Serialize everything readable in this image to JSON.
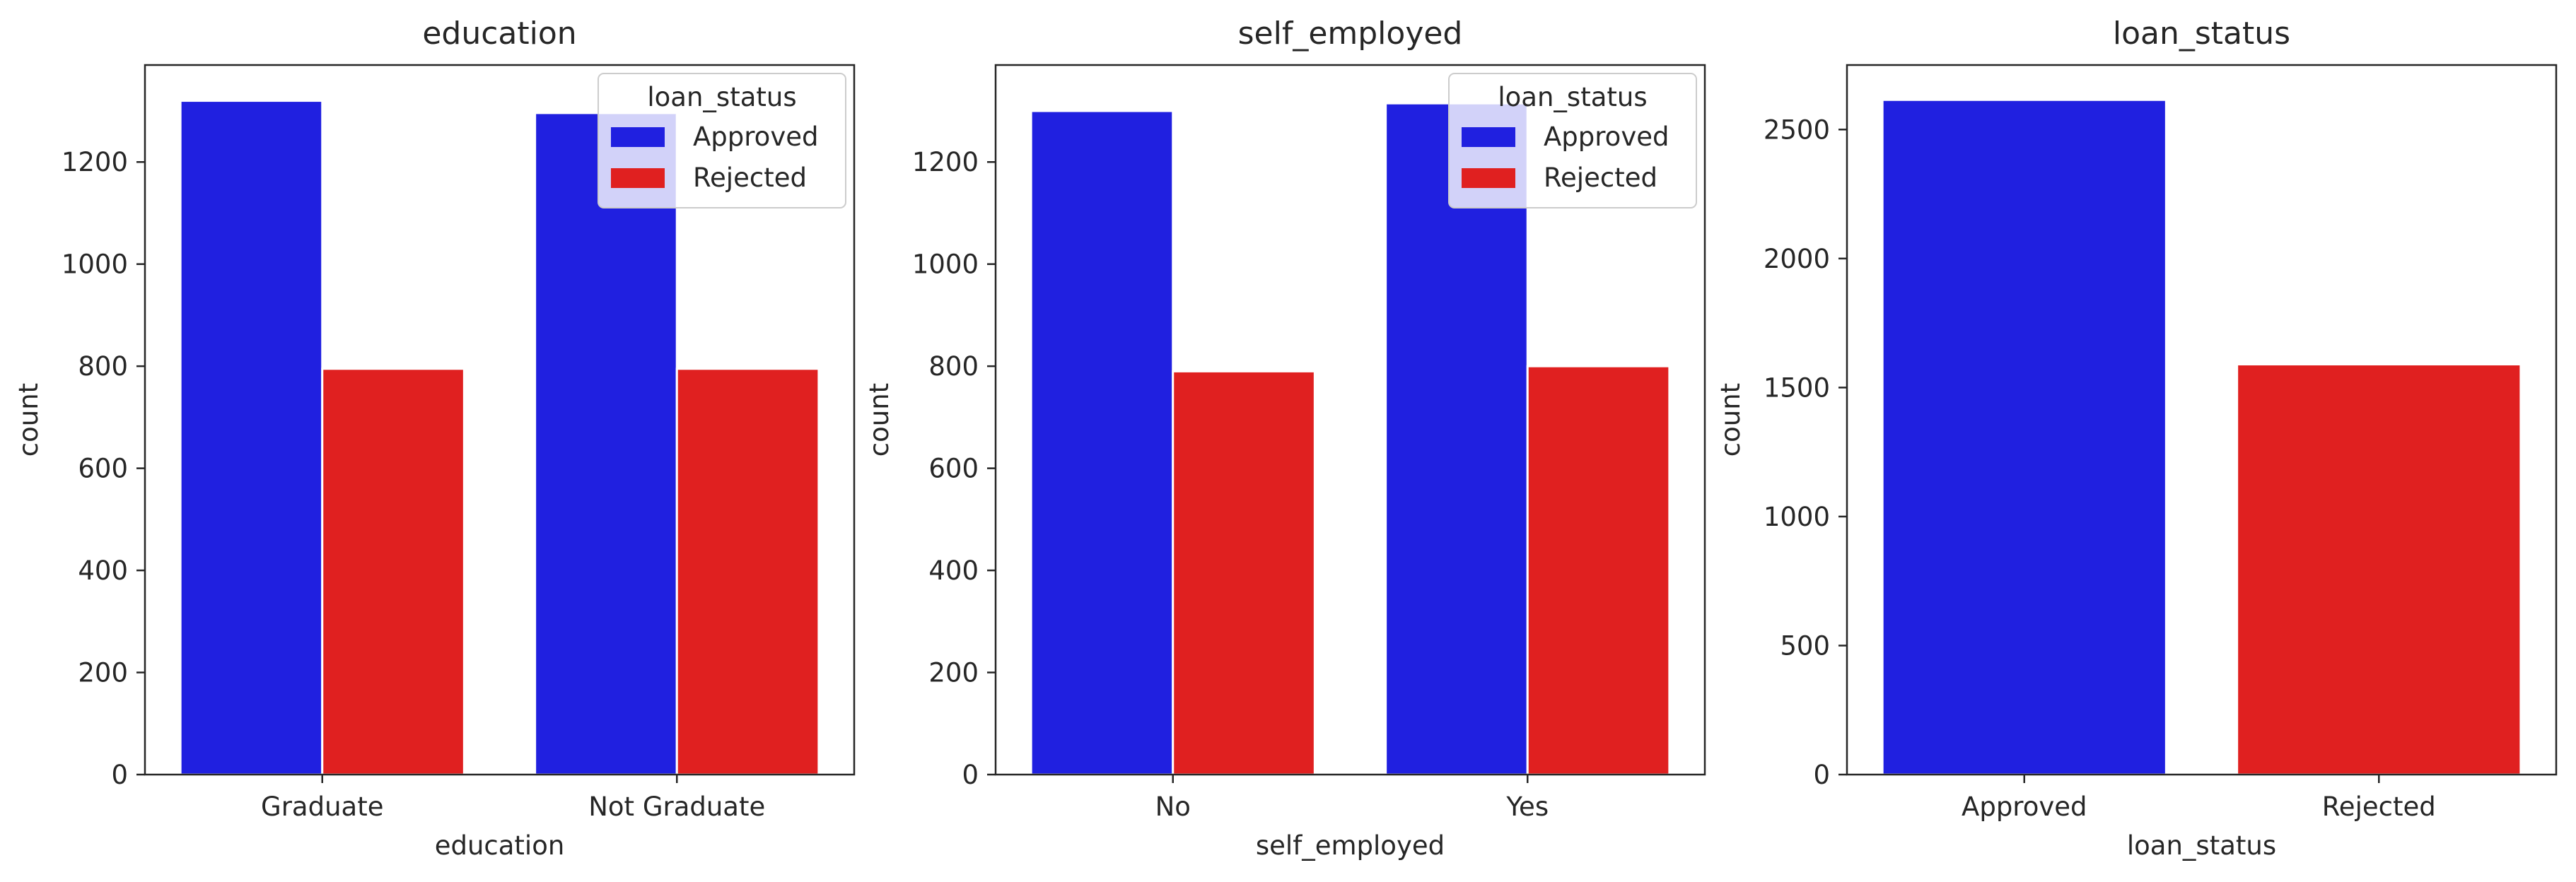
{
  "colors": {
    "Approved": "#2020e0",
    "Rejected": "#e02020"
  },
  "chart_data": [
    {
      "type": "bar",
      "title": "education",
      "xlabel": "education",
      "ylabel": "count",
      "categories": [
        "Graduate",
        "Not Graduate"
      ],
      "series": [
        {
          "name": "Approved",
          "values": [
            1320,
            1296
          ]
        },
        {
          "name": "Rejected",
          "values": [
            795,
            795
          ]
        }
      ],
      "ylim": [
        0,
        1390
      ],
      "yticks": [
        0,
        200,
        400,
        600,
        800,
        1000,
        1200
      ],
      "legend": {
        "title": "loan_status",
        "position": "top-right"
      }
    },
    {
      "type": "bar",
      "title": "self_employed",
      "xlabel": "self_employed",
      "ylabel": "count",
      "categories": [
        "No",
        "Yes"
      ],
      "series": [
        {
          "name": "Approved",
          "values": [
            1300,
            1315
          ]
        },
        {
          "name": "Rejected",
          "values": [
            790,
            800
          ]
        }
      ],
      "ylim": [
        0,
        1390
      ],
      "yticks": [
        0,
        200,
        400,
        600,
        800,
        1000,
        1200
      ],
      "legend": {
        "title": "loan_status",
        "position": "top-right"
      }
    },
    {
      "type": "bar",
      "title": "loan_status",
      "xlabel": "loan_status",
      "ylabel": "count",
      "categories": [
        "Approved",
        "Rejected"
      ],
      "series": [
        {
          "values": [
            2615,
            1590
          ]
        }
      ],
      "ylim": [
        0,
        2750
      ],
      "yticks": [
        0,
        500,
        1000,
        1500,
        2000,
        2500
      ]
    }
  ]
}
